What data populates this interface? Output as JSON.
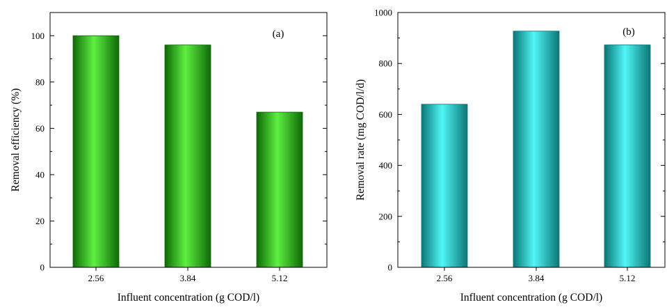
{
  "chart_data": [
    {
      "type": "bar",
      "panel_label": "(a)",
      "categories": [
        "2.56",
        "3.84",
        "5.12"
      ],
      "values": [
        100,
        96,
        67
      ],
      "xlabel": "Influent concentration (g COD/l)",
      "ylabel": "Removal efficiency (%)",
      "ylim": [
        0,
        110
      ],
      "yticks": [
        "0",
        "20",
        "40",
        "60",
        "80",
        "100"
      ],
      "grid": false,
      "bar_color": "#22b014",
      "bar_color_light": "#5ef040",
      "bar_color_dark": "#0e6a06"
    },
    {
      "type": "bar",
      "panel_label": "(b)",
      "categories": [
        "2.56",
        "3.84",
        "5.12"
      ],
      "values": [
        640,
        927,
        873
      ],
      "xlabel": "Influent concentration (g COD/l)",
      "ylabel": "Removal rate (mg COD/l/d)",
      "ylim": [
        0,
        1000
      ],
      "yticks": [
        "0",
        "200",
        "400",
        "600",
        "800",
        "1000"
      ],
      "grid": false,
      "bar_color": "#1ec8c8",
      "bar_color_light": "#50f6f6",
      "bar_color_dark": "#0a7676"
    }
  ]
}
